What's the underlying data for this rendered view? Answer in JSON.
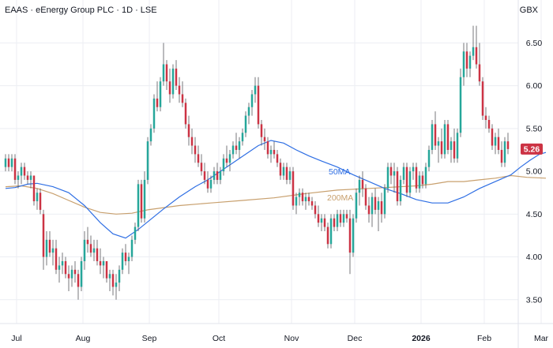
{
  "header": {
    "title": "EAAS · eEnergy Group PLC · 1D · LSE",
    "currency": "GBX"
  },
  "colors": {
    "up": "#26a69a",
    "down": "#cc3344",
    "ma50": "#2f6fe4",
    "ma200": "#c8a06e",
    "grid": "#eceef3",
    "background": "#ffffff"
  },
  "chart_data": {
    "type": "candlestick",
    "x_axis": {
      "ticks": [
        {
          "label": "Jul",
          "index": 3.5,
          "bold": false
        },
        {
          "label": "Aug",
          "index": 24.5,
          "bold": false
        },
        {
          "label": "Sep",
          "index": 45.5,
          "bold": false
        },
        {
          "label": "Oct",
          "index": 67.5,
          "bold": false
        },
        {
          "label": "Nov",
          "index": 90.5,
          "bold": false
        },
        {
          "label": "Dec",
          "index": 110.5,
          "bold": false
        },
        {
          "label": "2026",
          "index": 131.5,
          "bold": true
        },
        {
          "label": "Feb",
          "index": 151.5,
          "bold": false
        },
        {
          "label": "Mar",
          "index": 169.5,
          "bold": false
        }
      ]
    },
    "y_axis": {
      "ticks": [
        3.5,
        4.0,
        4.5,
        5.0,
        5.5,
        6.0,
        6.5
      ],
      "range": [
        3.24,
        6.78
      ]
    },
    "last_price": "5.26",
    "series": [
      {
        "name": "50MA",
        "label": "50MA"
      },
      {
        "name": "200MA",
        "label": "200MA"
      }
    ],
    "candles": [
      [
        5.05,
        5.2,
        5.0,
        5.15
      ],
      [
        5.15,
        5.2,
        5.0,
        5.05
      ],
      [
        5.05,
        5.2,
        5.0,
        5.15
      ],
      [
        5.15,
        5.2,
        4.85,
        4.9
      ],
      [
        4.9,
        5.0,
        4.8,
        4.95
      ],
      [
        4.95,
        5.1,
        4.85,
        5.05
      ],
      [
        5.05,
        5.1,
        4.9,
        4.95
      ],
      [
        4.95,
        5.0,
        4.85,
        4.9
      ],
      [
        4.9,
        5.0,
        4.8,
        4.95
      ],
      [
        4.95,
        4.95,
        4.6,
        4.65
      ],
      [
        4.65,
        4.8,
        4.55,
        4.75
      ],
      [
        4.75,
        4.8,
        4.5,
        4.55
      ],
      [
        4.5,
        4.55,
        3.85,
        4.0
      ],
      [
        4.0,
        4.3,
        3.9,
        4.2
      ],
      [
        4.2,
        4.3,
        4.0,
        4.05
      ],
      [
        4.05,
        4.2,
        3.9,
        4.1
      ],
      [
        4.1,
        4.2,
        3.8,
        3.85
      ],
      [
        3.85,
        4.0,
        3.7,
        3.9
      ],
      [
        3.9,
        4.05,
        3.8,
        3.95
      ],
      [
        3.95,
        4.0,
        3.75,
        3.8
      ],
      [
        3.8,
        3.9,
        3.6,
        3.75
      ],
      [
        3.75,
        3.9,
        3.65,
        3.85
      ],
      [
        3.85,
        3.95,
        3.7,
        3.8
      ],
      [
        3.8,
        3.85,
        3.5,
        3.65
      ],
      [
        3.65,
        4.0,
        3.6,
        3.95
      ],
      [
        3.95,
        4.3,
        3.85,
        4.2
      ],
      [
        4.2,
        4.35,
        4.05,
        4.15
      ],
      [
        4.15,
        4.25,
        4.0,
        4.05
      ],
      [
        4.05,
        4.2,
        3.95,
        4.1
      ],
      [
        4.1,
        4.2,
        3.9,
        3.95
      ],
      [
        3.95,
        4.1,
        3.8,
        3.9
      ],
      [
        3.9,
        4.0,
        3.75,
        3.95
      ],
      [
        3.95,
        3.95,
        3.7,
        3.75
      ],
      [
        3.75,
        3.85,
        3.6,
        3.8
      ],
      [
        3.8,
        3.85,
        3.55,
        3.65
      ],
      [
        3.65,
        3.8,
        3.5,
        3.7
      ],
      [
        3.7,
        3.9,
        3.6,
        3.85
      ],
      [
        3.85,
        4.1,
        3.8,
        4.05
      ],
      [
        4.05,
        4.15,
        3.9,
        3.95
      ],
      [
        3.95,
        4.05,
        3.8,
        4.0
      ],
      [
        4.0,
        4.25,
        3.95,
        4.2
      ],
      [
        4.2,
        4.4,
        4.15,
        4.35
      ],
      [
        4.35,
        4.9,
        4.3,
        4.85
      ],
      [
        4.85,
        4.9,
        4.4,
        4.45
      ],
      [
        4.45,
        5.0,
        4.4,
        4.9
      ],
      [
        4.9,
        5.4,
        4.85,
        5.35
      ],
      [
        5.35,
        5.55,
        5.3,
        5.5
      ],
      [
        5.5,
        5.9,
        5.45,
        5.85
      ],
      [
        5.85,
        6.05,
        5.7,
        5.75
      ],
      [
        5.75,
        6.1,
        5.7,
        6.05
      ],
      [
        6.05,
        6.5,
        6.0,
        6.25
      ],
      [
        6.25,
        6.3,
        5.95,
        6.05
      ],
      [
        6.05,
        6.2,
        5.8,
        5.9
      ],
      [
        5.9,
        6.25,
        5.85,
        6.2
      ],
      [
        6.2,
        6.3,
        5.95,
        6.0
      ],
      [
        6.0,
        6.1,
        5.8,
        5.9
      ],
      [
        5.9,
        6.05,
        5.75,
        5.8
      ],
      [
        5.8,
        5.85,
        5.5,
        5.55
      ],
      [
        5.55,
        5.65,
        5.3,
        5.4
      ],
      [
        5.4,
        5.5,
        5.2,
        5.3
      ],
      [
        5.3,
        5.4,
        5.1,
        5.2
      ],
      [
        5.2,
        5.3,
        5.05,
        5.1
      ],
      [
        5.1,
        5.2,
        4.95,
        5.0
      ],
      [
        5.0,
        5.1,
        4.85,
        4.9
      ],
      [
        4.9,
        5.0,
        4.75,
        4.8
      ],
      [
        4.8,
        4.95,
        4.75,
        4.9
      ],
      [
        4.9,
        5.05,
        4.85,
        5.0
      ],
      [
        5.0,
        5.1,
        4.85,
        4.9
      ],
      [
        4.9,
        5.05,
        4.85,
        5.0
      ],
      [
        5.0,
        5.2,
        4.95,
        5.15
      ],
      [
        5.15,
        5.3,
        5.05,
        5.1
      ],
      [
        5.1,
        5.25,
        5.0,
        5.2
      ],
      [
        5.2,
        5.35,
        5.15,
        5.3
      ],
      [
        5.3,
        5.45,
        5.2,
        5.25
      ],
      [
        5.25,
        5.4,
        5.15,
        5.35
      ],
      [
        5.35,
        5.5,
        5.3,
        5.45
      ],
      [
        5.45,
        5.7,
        5.4,
        5.65
      ],
      [
        5.65,
        5.8,
        5.55,
        5.75
      ],
      [
        5.75,
        5.95,
        5.65,
        5.9
      ],
      [
        5.9,
        6.1,
        5.8,
        6.0
      ],
      [
        6.0,
        6.1,
        5.5,
        5.55
      ],
      [
        5.55,
        5.6,
        5.3,
        5.4
      ],
      [
        5.4,
        5.5,
        5.25,
        5.35
      ],
      [
        5.35,
        5.4,
        5.15,
        5.2
      ],
      [
        5.2,
        5.3,
        5.1,
        5.25
      ],
      [
        5.25,
        5.35,
        5.15,
        5.2
      ],
      [
        5.2,
        5.25,
        5.05,
        5.1
      ],
      [
        5.1,
        5.15,
        4.9,
        4.95
      ],
      [
        4.95,
        5.1,
        4.9,
        5.05
      ],
      [
        5.05,
        5.1,
        4.85,
        4.9
      ],
      [
        4.9,
        5.05,
        4.85,
        5.0
      ],
      [
        5.0,
        5.05,
        4.55,
        4.6
      ],
      [
        4.6,
        4.75,
        4.5,
        4.7
      ],
      [
        4.7,
        4.8,
        4.6,
        4.75
      ],
      [
        4.75,
        4.8,
        4.6,
        4.65
      ],
      [
        4.65,
        4.75,
        4.55,
        4.7
      ],
      [
        4.7,
        4.75,
        4.6,
        4.65
      ],
      [
        4.65,
        4.7,
        4.55,
        4.6
      ],
      [
        4.6,
        4.65,
        4.45,
        4.5
      ],
      [
        4.5,
        4.6,
        4.35,
        4.4
      ],
      [
        4.4,
        4.5,
        4.3,
        4.45
      ],
      [
        4.45,
        4.5,
        4.3,
        4.35
      ],
      [
        4.35,
        4.4,
        4.1,
        4.15
      ],
      [
        4.15,
        4.5,
        4.1,
        4.45
      ],
      [
        4.45,
        4.5,
        4.3,
        4.35
      ],
      [
        4.35,
        4.55,
        4.3,
        4.5
      ],
      [
        4.5,
        4.55,
        4.35,
        4.4
      ],
      [
        4.4,
        4.55,
        4.35,
        4.5
      ],
      [
        4.5,
        4.55,
        4.4,
        4.45
      ],
      [
        4.45,
        4.55,
        3.8,
        4.05
      ],
      [
        4.05,
        4.5,
        4.0,
        4.45
      ],
      [
        4.45,
        4.8,
        4.4,
        4.75
      ],
      [
        4.75,
        4.95,
        4.6,
        4.9
      ],
      [
        4.9,
        5.0,
        4.7,
        4.8
      ],
      [
        4.8,
        4.85,
        4.55,
        4.6
      ],
      [
        4.6,
        4.7,
        4.4,
        4.5
      ],
      [
        4.5,
        4.75,
        4.35,
        4.7
      ],
      [
        4.7,
        4.8,
        4.5,
        4.55
      ],
      [
        4.55,
        4.7,
        4.3,
        4.65
      ],
      [
        4.65,
        4.75,
        4.4,
        4.5
      ],
      [
        4.5,
        4.85,
        4.45,
        4.8
      ],
      [
        4.8,
        5.1,
        4.75,
        5.05
      ],
      [
        5.05,
        5.1,
        4.85,
        4.95
      ],
      [
        4.95,
        5.1,
        4.75,
        5.0
      ],
      [
        5.0,
        5.05,
        4.6,
        4.65
      ],
      [
        4.65,
        4.95,
        4.6,
        4.9
      ],
      [
        4.9,
        5.1,
        4.85,
        5.05
      ],
      [
        5.05,
        5.1,
        4.7,
        4.75
      ],
      [
        4.75,
        5.05,
        4.7,
        5.0
      ],
      [
        5.0,
        5.1,
        4.9,
        5.05
      ],
      [
        5.05,
        5.1,
        4.75,
        4.8
      ],
      [
        4.8,
        5.0,
        4.75,
        4.95
      ],
      [
        4.95,
        5.0,
        4.8,
        4.85
      ],
      [
        4.85,
        5.1,
        4.8,
        5.05
      ],
      [
        5.05,
        5.3,
        5.0,
        5.25
      ],
      [
        5.25,
        5.6,
        5.2,
        5.55
      ],
      [
        5.55,
        5.7,
        5.25,
        5.3
      ],
      [
        5.3,
        5.4,
        5.1,
        5.35
      ],
      [
        5.35,
        5.5,
        5.15,
        5.2
      ],
      [
        5.2,
        5.6,
        5.15,
        5.55
      ],
      [
        5.55,
        5.6,
        5.2,
        5.25
      ],
      [
        5.25,
        5.4,
        5.1,
        5.35
      ],
      [
        5.35,
        5.5,
        5.1,
        5.15
      ],
      [
        5.15,
        5.5,
        5.1,
        5.45
      ],
      [
        5.45,
        6.2,
        5.4,
        6.1
      ],
      [
        6.1,
        6.5,
        6.0,
        6.4
      ],
      [
        6.4,
        6.5,
        6.1,
        6.2
      ],
      [
        6.2,
        6.4,
        6.1,
        6.35
      ],
      [
        6.35,
        6.7,
        6.3,
        6.45
      ],
      [
        6.45,
        6.7,
        6.2,
        6.25
      ],
      [
        6.25,
        6.5,
        6.0,
        6.05
      ],
      [
        6.05,
        6.1,
        5.6,
        5.65
      ],
      [
        5.65,
        5.75,
        5.5,
        5.6
      ],
      [
        5.6,
        5.65,
        5.45,
        5.5
      ],
      [
        5.5,
        5.55,
        5.25,
        5.3
      ],
      [
        5.3,
        5.45,
        5.2,
        5.4
      ],
      [
        5.4,
        5.5,
        5.2,
        5.25
      ],
      [
        5.25,
        5.35,
        5.05,
        5.1
      ],
      [
        5.1,
        5.4,
        5.05,
        5.35
      ],
      [
        5.35,
        5.45,
        5.2,
        5.26
      ]
    ],
    "ma50": [
      [
        0,
        4.8
      ],
      [
        3,
        4.81
      ],
      [
        7,
        4.85
      ],
      [
        10,
        4.86
      ],
      [
        15,
        4.82
      ],
      [
        20,
        4.75
      ],
      [
        25,
        4.6
      ],
      [
        30,
        4.4
      ],
      [
        34,
        4.27
      ],
      [
        38,
        4.22
      ],
      [
        42,
        4.32
      ],
      [
        46,
        4.44
      ],
      [
        50,
        4.56
      ],
      [
        55,
        4.7
      ],
      [
        60,
        4.82
      ],
      [
        64,
        4.9
      ],
      [
        68,
        5.0
      ],
      [
        72,
        5.1
      ],
      [
        76,
        5.2
      ],
      [
        80,
        5.3
      ],
      [
        84,
        5.36
      ],
      [
        88,
        5.33
      ],
      [
        92,
        5.25
      ],
      [
        96,
        5.18
      ],
      [
        100,
        5.12
      ],
      [
        105,
        5.05
      ],
      [
        110,
        4.96
      ],
      [
        115,
        4.88
      ],
      [
        120,
        4.8
      ],
      [
        125,
        4.74
      ],
      [
        130,
        4.67
      ],
      [
        135,
        4.63
      ],
      [
        140,
        4.63
      ],
      [
        145,
        4.7
      ],
      [
        150,
        4.8
      ],
      [
        155,
        4.88
      ],
      [
        160,
        4.96
      ],
      [
        163,
        5.05
      ],
      [
        166,
        5.13
      ],
      [
        169,
        5.2
      ],
      [
        171,
        5.22
      ]
    ],
    "ma200": [
      [
        0,
        4.82
      ],
      [
        5,
        4.83
      ],
      [
        10,
        4.8
      ],
      [
        15,
        4.74
      ],
      [
        20,
        4.66
      ],
      [
        25,
        4.58
      ],
      [
        30,
        4.52
      ],
      [
        35,
        4.5
      ],
      [
        40,
        4.51
      ],
      [
        45,
        4.55
      ],
      [
        55,
        4.6
      ],
      [
        65,
        4.63
      ],
      [
        75,
        4.66
      ],
      [
        85,
        4.69
      ],
      [
        95,
        4.74
      ],
      [
        105,
        4.78
      ],
      [
        115,
        4.8
      ],
      [
        125,
        4.82
      ],
      [
        130,
        4.83
      ],
      [
        135,
        4.85
      ],
      [
        140,
        4.88
      ],
      [
        145,
        4.88
      ],
      [
        150,
        4.9
      ],
      [
        155,
        4.92
      ],
      [
        160,
        4.95
      ],
      [
        165,
        4.93
      ],
      [
        171,
        4.92
      ]
    ]
  }
}
